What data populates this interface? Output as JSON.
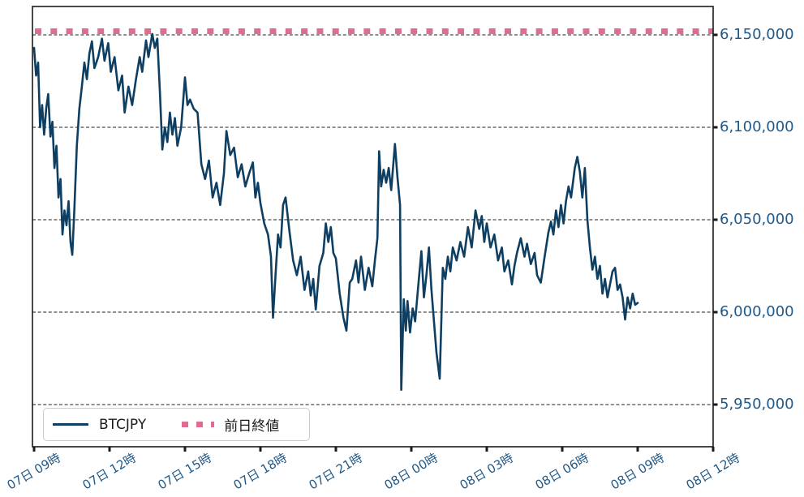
{
  "colors": {
    "price_line": "#0e3f62",
    "prev_close_line": "#de6e8e",
    "tick_label": "#215a89",
    "grid": "#1f1f1f",
    "spine": "#1a1a1a",
    "legend_border": "#cbcbcb",
    "legend_text": "#1a1a1a",
    "background": "#ffffff"
  },
  "legend": {
    "series_label": "BTCJPY",
    "prev_close_label": "前日終値"
  },
  "chart_data": {
    "type": "line",
    "title": "",
    "xlabel": "",
    "ylabel": "",
    "grid": "horizontal-dashed",
    "legend_position": "lower-left",
    "x_unit": "hours since 07日 09時",
    "xlim_hours": [
      -0.1,
      27
    ],
    "ylim": [
      5927300,
      6165400
    ],
    "y_ticks": [
      {
        "value": 6150000,
        "label": "6,150,000"
      },
      {
        "value": 6100000,
        "label": "6,100,000"
      },
      {
        "value": 6050000,
        "label": "6,050,000"
      },
      {
        "value": 6000000,
        "label": "6,000,000"
      },
      {
        "value": 5950000,
        "label": "5,950,000"
      }
    ],
    "x_ticks": [
      {
        "hour": 0,
        "label": "07日 09時"
      },
      {
        "hour": 3,
        "label": "07日 12時"
      },
      {
        "hour": 6,
        "label": "07日 15時"
      },
      {
        "hour": 9,
        "label": "07日 18時"
      },
      {
        "hour": 12,
        "label": "07日 21時"
      },
      {
        "hour": 15,
        "label": "08日 00時"
      },
      {
        "hour": 18,
        "label": "08日 03時"
      },
      {
        "hour": 21,
        "label": "08日 06時"
      },
      {
        "hour": 24,
        "label": "08日 09時"
      },
      {
        "hour": 27,
        "label": "08日 12時"
      }
    ],
    "series": [
      {
        "name": "BTCJPY",
        "type": "line",
        "points": [
          [
            0.0,
            6143000
          ],
          [
            0.08,
            6128000
          ],
          [
            0.16,
            6135000
          ],
          [
            0.24,
            6100000
          ],
          [
            0.32,
            6112000
          ],
          [
            0.4,
            6096000
          ],
          [
            0.48,
            6110000
          ],
          [
            0.56,
            6118000
          ],
          [
            0.65,
            6095000
          ],
          [
            0.73,
            6103000
          ],
          [
            0.81,
            6078000
          ],
          [
            0.89,
            6090000
          ],
          [
            0.97,
            6062000
          ],
          [
            1.05,
            6072000
          ],
          [
            1.13,
            6042000
          ],
          [
            1.21,
            6055000
          ],
          [
            1.29,
            6047000
          ],
          [
            1.37,
            6060000
          ],
          [
            1.45,
            6038000
          ],
          [
            1.52,
            6031000
          ],
          [
            1.6,
            6055000
          ],
          [
            1.7,
            6090000
          ],
          [
            1.8,
            6110000
          ],
          [
            1.9,
            6122000
          ],
          [
            2.0,
            6135000
          ],
          [
            2.1,
            6126000
          ],
          [
            2.2,
            6140000
          ],
          [
            2.3,
            6146500
          ],
          [
            2.4,
            6132000
          ],
          [
            2.55,
            6138000
          ],
          [
            2.7,
            6148000
          ],
          [
            2.8,
            6136000
          ],
          [
            2.95,
            6145500
          ],
          [
            3.05,
            6130000
          ],
          [
            3.2,
            6138000
          ],
          [
            3.35,
            6120000
          ],
          [
            3.5,
            6128000
          ],
          [
            3.6,
            6108000
          ],
          [
            3.75,
            6122000
          ],
          [
            3.9,
            6112000
          ],
          [
            4.05,
            6126000
          ],
          [
            4.2,
            6138000
          ],
          [
            4.3,
            6130000
          ],
          [
            4.45,
            6147000
          ],
          [
            4.55,
            6138000
          ],
          [
            4.7,
            6150500
          ],
          [
            4.8,
            6143000
          ],
          [
            4.9,
            6148000
          ],
          [
            5.0,
            6120000
          ],
          [
            5.1,
            6088000
          ],
          [
            5.2,
            6100000
          ],
          [
            5.3,
            6092000
          ],
          [
            5.4,
            6108000
          ],
          [
            5.5,
            6096000
          ],
          [
            5.6,
            6105000
          ],
          [
            5.7,
            6090000
          ],
          [
            5.85,
            6100000
          ],
          [
            6.0,
            6127000
          ],
          [
            6.1,
            6112000
          ],
          [
            6.2,
            6115000
          ],
          [
            6.35,
            6110000
          ],
          [
            6.5,
            6108000
          ],
          [
            6.65,
            6080000
          ],
          [
            6.8,
            6072000
          ],
          [
            6.95,
            6082000
          ],
          [
            7.1,
            6062000
          ],
          [
            7.25,
            6070000
          ],
          [
            7.4,
            6058000
          ],
          [
            7.55,
            6075000
          ],
          [
            7.65,
            6098000
          ],
          [
            7.8,
            6085000
          ],
          [
            7.95,
            6089000
          ],
          [
            8.1,
            6073000
          ],
          [
            8.25,
            6080000
          ],
          [
            8.4,
            6068000
          ],
          [
            8.55,
            6075000
          ],
          [
            8.7,
            6081000
          ],
          [
            8.8,
            6062000
          ],
          [
            8.9,
            6070000
          ],
          [
            9.0,
            6059000
          ],
          [
            9.15,
            6048000
          ],
          [
            9.3,
            6042000
          ],
          [
            9.42,
            6030000
          ],
          [
            9.5,
            5997000
          ],
          [
            9.6,
            6020000
          ],
          [
            9.7,
            6042000
          ],
          [
            9.8,
            6035000
          ],
          [
            9.9,
            6058000
          ],
          [
            10.0,
            6062000
          ],
          [
            10.15,
            6044000
          ],
          [
            10.3,
            6028000
          ],
          [
            10.45,
            6020000
          ],
          [
            10.6,
            6030000
          ],
          [
            10.75,
            6012000
          ],
          [
            10.9,
            6022000
          ],
          [
            11.0,
            6009000
          ],
          [
            11.1,
            6018000
          ],
          [
            11.2,
            6001500
          ],
          [
            11.35,
            6025000
          ],
          [
            11.5,
            6032000
          ],
          [
            11.6,
            6048000
          ],
          [
            11.7,
            6038000
          ],
          [
            11.8,
            6046000
          ],
          [
            11.9,
            6032000
          ],
          [
            12.0,
            6029000
          ],
          [
            12.15,
            6010000
          ],
          [
            12.3,
            5997000
          ],
          [
            12.42,
            5990000
          ],
          [
            12.55,
            6016000
          ],
          [
            12.65,
            6018000
          ],
          [
            12.8,
            6028000
          ],
          [
            12.9,
            6016000
          ],
          [
            13.0,
            6030000
          ],
          [
            13.15,
            6012000
          ],
          [
            13.3,
            6024000
          ],
          [
            13.45,
            6014000
          ],
          [
            13.55,
            6028000
          ],
          [
            13.65,
            6040000
          ],
          [
            13.72,
            6087000
          ],
          [
            13.8,
            6068000
          ],
          [
            13.9,
            6077000
          ],
          [
            14.0,
            6070000
          ],
          [
            14.1,
            6078000
          ],
          [
            14.2,
            6066000
          ],
          [
            14.35,
            6091000
          ],
          [
            14.45,
            6073000
          ],
          [
            14.55,
            6058000
          ],
          [
            14.6,
            5958000
          ],
          [
            14.7,
            6007000
          ],
          [
            14.78,
            5990000
          ],
          [
            14.85,
            6006000
          ],
          [
            14.95,
            5989000
          ],
          [
            15.05,
            6002000
          ],
          [
            15.15,
            5995000
          ],
          [
            15.3,
            6018000
          ],
          [
            15.4,
            6033000
          ],
          [
            15.5,
            6008000
          ],
          [
            15.6,
            6020000
          ],
          [
            15.7,
            6035000
          ],
          [
            15.8,
            6012000
          ],
          [
            15.9,
            5995000
          ],
          [
            16.0,
            5978000
          ],
          [
            16.13,
            5964000
          ],
          [
            16.25,
            6024000
          ],
          [
            16.35,
            6018000
          ],
          [
            16.45,
            6030000
          ],
          [
            16.55,
            6022000
          ],
          [
            16.65,
            6035000
          ],
          [
            16.8,
            6028000
          ],
          [
            16.95,
            6038000
          ],
          [
            17.1,
            6030000
          ],
          [
            17.25,
            6046000
          ],
          [
            17.4,
            6035000
          ],
          [
            17.55,
            6055000
          ],
          [
            17.7,
            6045000
          ],
          [
            17.8,
            6052000
          ],
          [
            17.9,
            6038000
          ],
          [
            18.0,
            6048000
          ],
          [
            18.15,
            6035000
          ],
          [
            18.3,
            6042000
          ],
          [
            18.45,
            6028000
          ],
          [
            18.6,
            6035000
          ],
          [
            18.7,
            6022000
          ],
          [
            18.85,
            6028000
          ],
          [
            19.0,
            6015000
          ],
          [
            19.1,
            6025000
          ],
          [
            19.2,
            6032000
          ],
          [
            19.35,
            6040000
          ],
          [
            19.5,
            6030000
          ],
          [
            19.6,
            6037000
          ],
          [
            19.75,
            6026000
          ],
          [
            19.9,
            6032000
          ],
          [
            20.0,
            6020000
          ],
          [
            20.15,
            6016000
          ],
          [
            20.3,
            6030000
          ],
          [
            20.45,
            6043000
          ],
          [
            20.55,
            6049000
          ],
          [
            20.65,
            6042000
          ],
          [
            20.75,
            6055000
          ],
          [
            20.85,
            6046000
          ],
          [
            20.95,
            6058000
          ],
          [
            21.05,
            6048000
          ],
          [
            21.15,
            6060000
          ],
          [
            21.25,
            6068000
          ],
          [
            21.35,
            6062000
          ],
          [
            21.5,
            6078000
          ],
          [
            21.6,
            6084000
          ],
          [
            21.7,
            6076000
          ],
          [
            21.8,
            6062000
          ],
          [
            21.9,
            6078000
          ],
          [
            22.0,
            6050000
          ],
          [
            22.1,
            6035000
          ],
          [
            22.2,
            6023000
          ],
          [
            22.3,
            6030000
          ],
          [
            22.4,
            6018000
          ],
          [
            22.5,
            6025000
          ],
          [
            22.6,
            6010000
          ],
          [
            22.7,
            6018000
          ],
          [
            22.8,
            6008000
          ],
          [
            22.9,
            6015000
          ],
          [
            23.0,
            6022000
          ],
          [
            23.1,
            6024000
          ],
          [
            23.2,
            6012000
          ],
          [
            23.3,
            6015000
          ],
          [
            23.4,
            6008000
          ],
          [
            23.5,
            5996000
          ],
          [
            23.6,
            6008000
          ],
          [
            23.7,
            6002000
          ],
          [
            23.8,
            6010000
          ],
          [
            23.9,
            6004000
          ],
          [
            24.0,
            6005000
          ]
        ]
      },
      {
        "name": "前日終値",
        "type": "hline-dashed",
        "value": 6152000
      }
    ]
  }
}
